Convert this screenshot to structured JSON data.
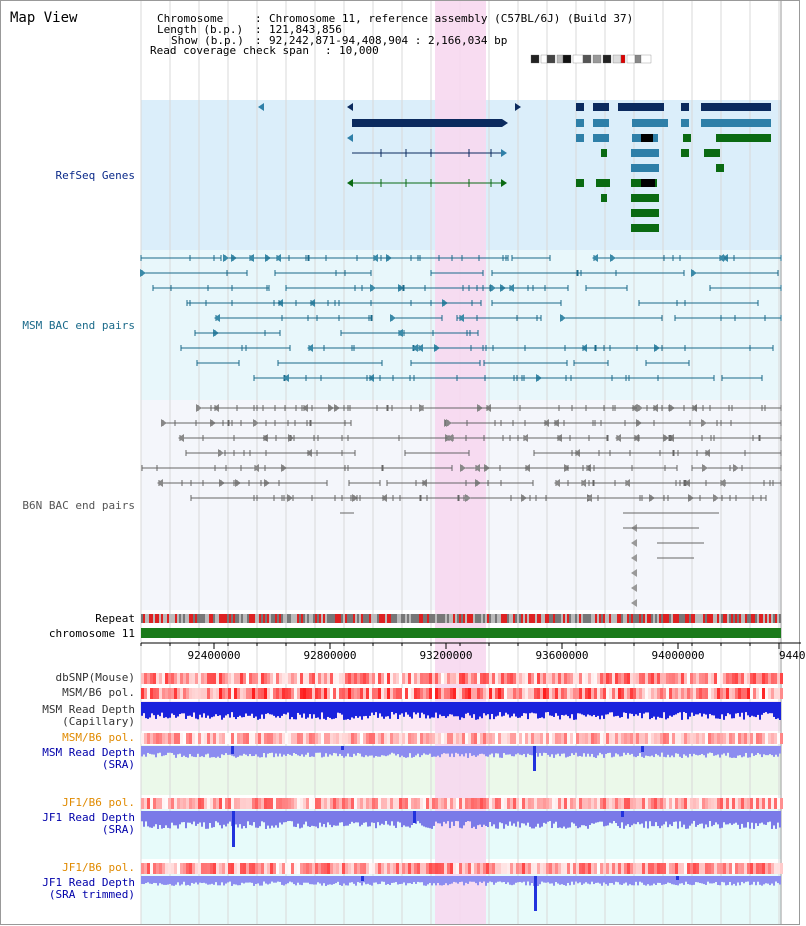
{
  "page": {
    "title": "Map View"
  },
  "header": {
    "chromosome_label": "Chromosome",
    "chromosome_value": "Chromosome 11, reference assembly (C57BL/6J) (Build 37)",
    "length_label": "Length (b.p.)",
    "length_value": "121,843,856",
    "show_label": "Show (b.p.)",
    "show_value": "92,242,871-94,408,904 : 2,166,034 bp",
    "coverage_label": "Read coverage check span",
    "coverage_value": "10,000"
  },
  "tracks": {
    "refseq": {
      "label": "RefSeq Genes",
      "color": "#0b2a8a"
    },
    "msm_bac": {
      "label": "MSM BAC end pairs",
      "color": "#1a6a8a"
    },
    "b6n_bac": {
      "label": "B6N BAC end pairs",
      "color": "#555555"
    },
    "repeat": {
      "label": "Repeat"
    },
    "chromosome": {
      "label": "chromosome 11",
      "color": "#1a7a1a"
    },
    "dbsnp": {
      "label": "dbSNP(Mouse)"
    },
    "msm_b6_pol": {
      "label": "MSM/B6 pol."
    },
    "msm_depth_cap": {
      "label1": "MSM Read Depth",
      "label2": "(Capillary)"
    },
    "msm_b6_pol2": {
      "label": "MSM/B6 pol.",
      "color": "#e08a00"
    },
    "msm_depth_sra": {
      "label1": "MSM Read Depth",
      "label2": "(SRA)",
      "color": "#0000aa"
    },
    "jf1_b6_pol": {
      "label": "JF1/B6 pol.",
      "color": "#e08a00"
    },
    "jf1_depth_sra": {
      "label1": "JF1 Read Depth",
      "label2": "(SRA)",
      "color": "#0000aa"
    },
    "jf1_b6_pol2": {
      "label": "JF1/B6 pol.",
      "color": "#e08a00"
    },
    "jf1_depth_trim": {
      "label1": "JF1 Read Depth",
      "label2": "(SRA trimmed)",
      "color": "#0000aa"
    }
  },
  "axis": {
    "ticks": [
      "92400000",
      "92800000",
      "93200000",
      "93600000",
      "94000000",
      "9440"
    ],
    "highlight_color": "#f7d8ef"
  }
}
